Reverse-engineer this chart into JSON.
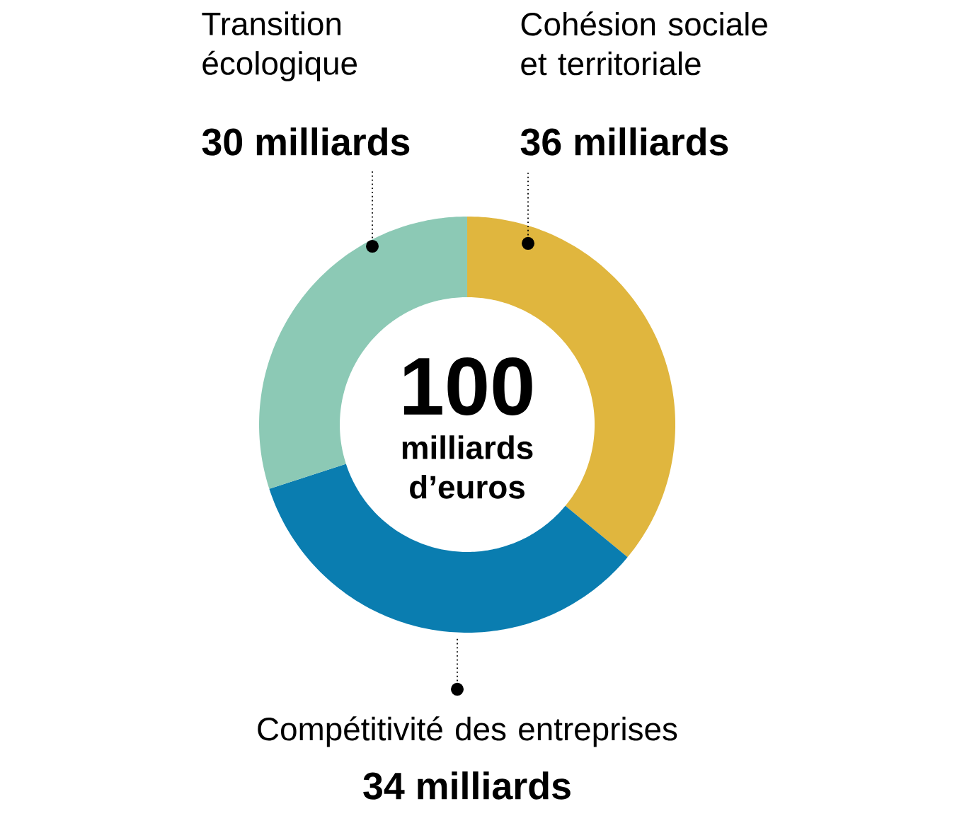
{
  "chart_data": {
    "type": "donut",
    "categories": [
      "Cohésion sociale et territoriale",
      "Compétitivité des entreprises",
      "Transition écologique"
    ],
    "values": [
      36,
      34,
      30
    ],
    "colors": [
      "#e0b63e",
      "#0a7db0",
      "#8cc9b5"
    ],
    "value_labels": [
      "36 milliards",
      "34 milliards",
      "30 milliards"
    ],
    "annotations": [
      "100",
      "milliards d’euros"
    ]
  }
}
